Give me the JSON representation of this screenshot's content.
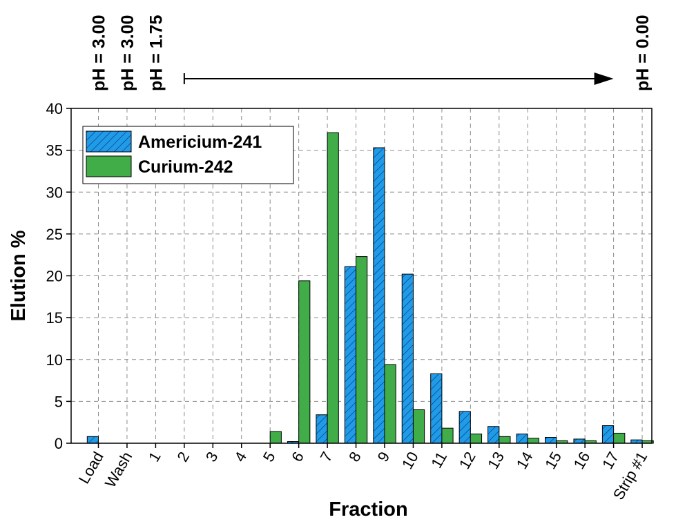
{
  "chart_data": {
    "type": "bar",
    "xlabel": "Fraction",
    "ylabel": "Elution %",
    "ylim": [
      0,
      40
    ],
    "yticks": [
      0,
      5,
      10,
      15,
      20,
      25,
      30,
      35,
      40
    ],
    "grid": true,
    "legend_position": "top-left",
    "categories": [
      "Load",
      "Wash",
      "1",
      "2",
      "3",
      "4",
      "5",
      "6",
      "7",
      "8",
      "9",
      "10",
      "11",
      "12",
      "13",
      "14",
      "15",
      "16",
      "17",
      "Strip #1"
    ],
    "series": [
      {
        "name": "Americium-241",
        "color": "#1f9bea",
        "pattern": "diagonal-hatch",
        "values": [
          0.8,
          0,
          0,
          0,
          0,
          0,
          0,
          0.2,
          3.4,
          21.1,
          35.3,
          20.2,
          8.3,
          3.8,
          2.0,
          1.1,
          0.7,
          0.5,
          2.1,
          0.4
        ]
      },
      {
        "name": "Curium-242",
        "color": "#41ad49",
        "pattern": "solid",
        "values": [
          0,
          0,
          0,
          0,
          0,
          0,
          1.4,
          19.4,
          37.1,
          22.3,
          9.4,
          4.0,
          1.8,
          1.1,
          0.8,
          0.6,
          0.3,
          0.3,
          1.2,
          0.3
        ]
      }
    ],
    "annotations": {
      "ph_labels": [
        {
          "text": "pH = 3.00",
          "category": "Load"
        },
        {
          "text": "pH = 3.00",
          "category": "Wash"
        },
        {
          "text": "pH = 1.75",
          "category": "1"
        },
        {
          "text": "pH = 0.00",
          "category": "Strip #1"
        }
      ],
      "arrow": {
        "from_category": "2",
        "to_category": "17"
      }
    }
  }
}
